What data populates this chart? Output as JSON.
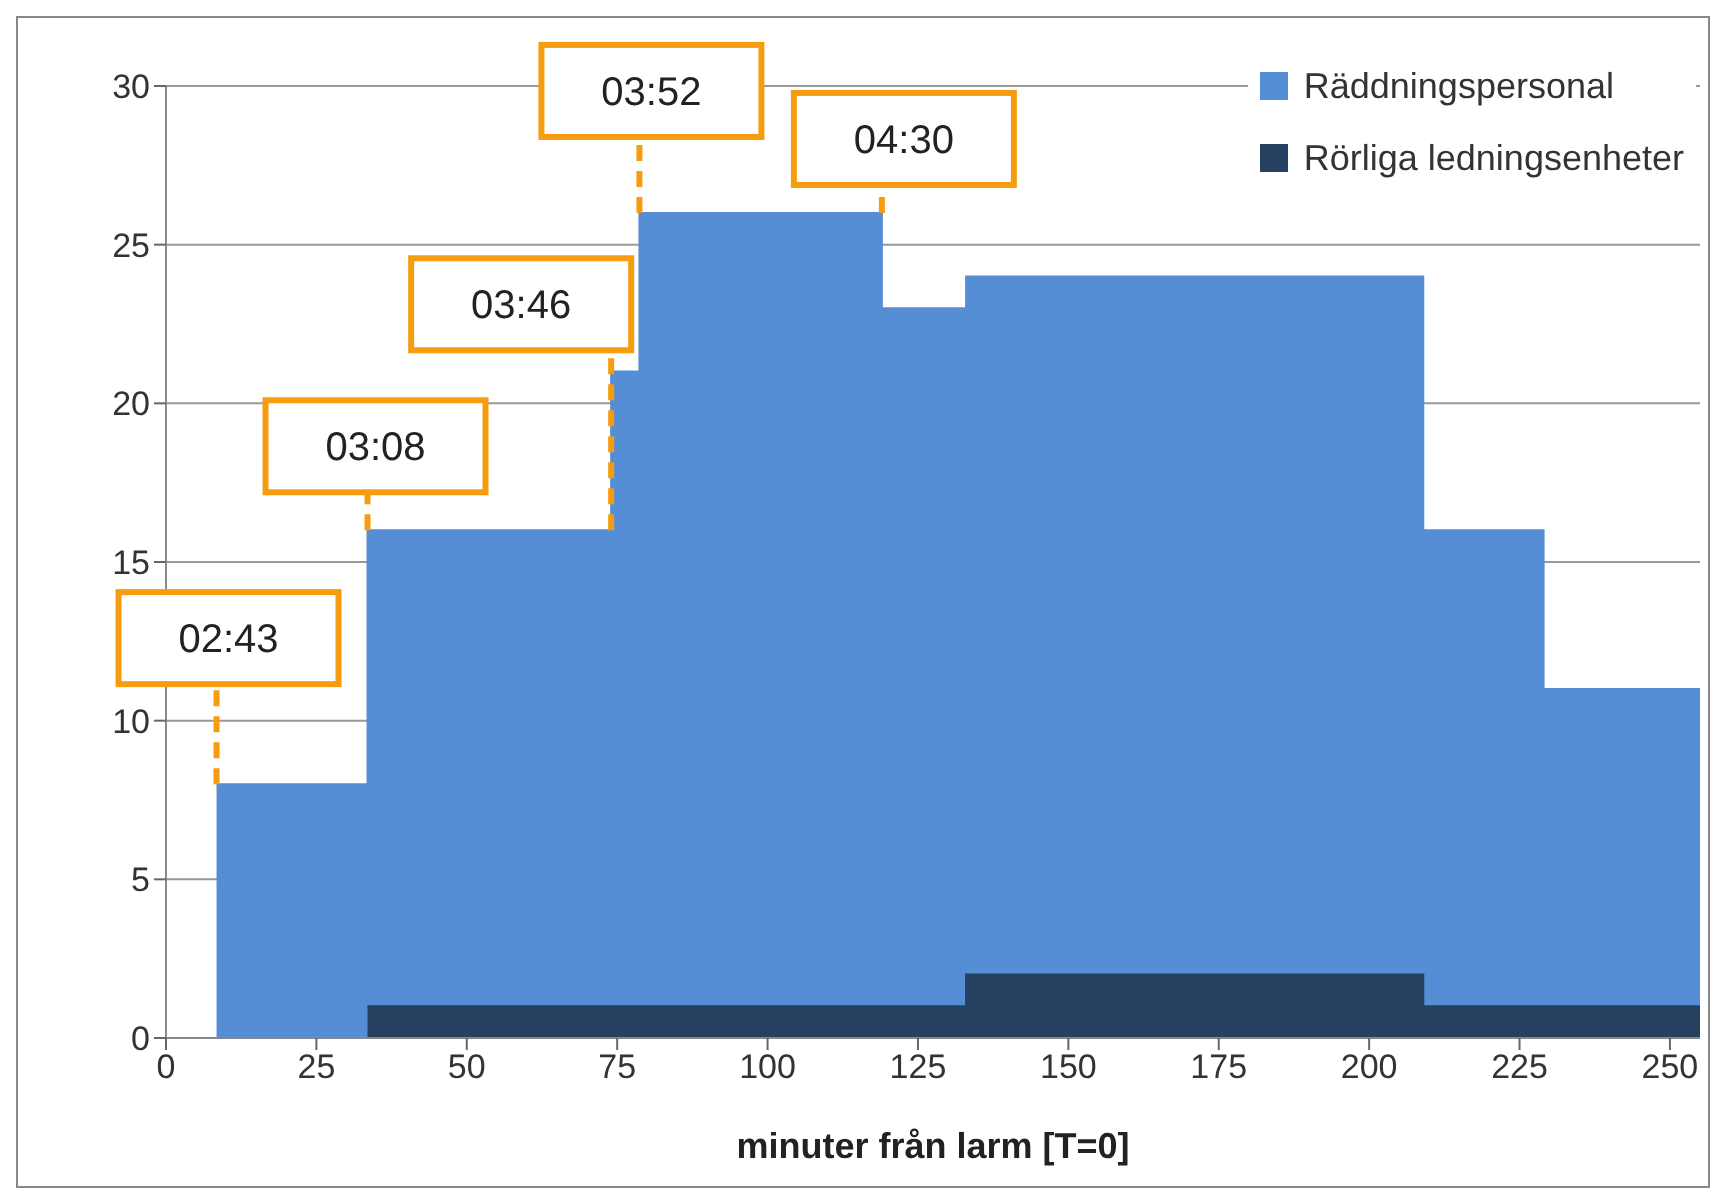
{
  "chart_data": {
    "type": "area",
    "xlabel": "minuter från larm [T=0]",
    "series": [
      {
        "name": "Räddningspersonal",
        "color": "#558ed5",
        "x": [
          8.4,
          33.5,
          33.5,
          74,
          74,
          78.7,
          78.7,
          119,
          119,
          133,
          133,
          209,
          209,
          229,
          229,
          255
        ],
        "values": [
          8,
          8,
          16,
          16,
          21,
          21,
          26,
          26,
          23,
          23,
          24,
          24,
          16,
          16,
          11,
          11
        ]
      },
      {
        "name": "Rörliga ledningsenheter",
        "color": "#254061",
        "x": [
          33.5,
          133,
          133,
          209,
          209,
          255
        ],
        "values": [
          1,
          1,
          2,
          2,
          1,
          1
        ]
      }
    ],
    "annotations": [
      {
        "text": "02:43",
        "x": 8.4,
        "y": 8
      },
      {
        "text": "03:08",
        "x": 33.5,
        "y": 16
      },
      {
        "text": "03:46",
        "x": 74,
        "y": 16
      },
      {
        "text": "03:52",
        "x": 78.7,
        "y": 26
      },
      {
        "text": "04:30",
        "x": 119,
        "y": 26
      }
    ],
    "xlim": [
      0,
      255
    ],
    "xticks": [
      0,
      25,
      50,
      75,
      100,
      125,
      150,
      175,
      200,
      225,
      250
    ],
    "ylim": [
      0,
      30
    ],
    "yticks": [
      0,
      5,
      10,
      15,
      20,
      25,
      30
    ],
    "grid": "y",
    "legend": "top right"
  }
}
